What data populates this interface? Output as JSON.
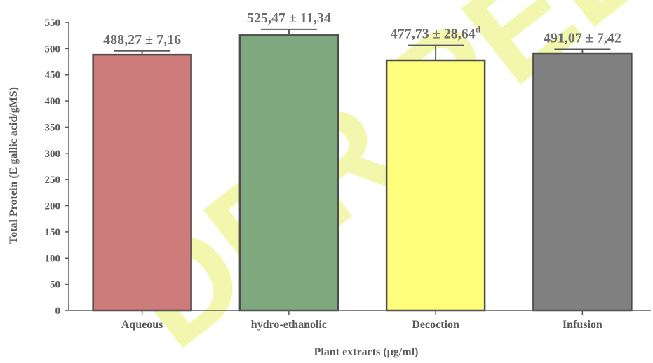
{
  "watermark": "DER PEER REVI",
  "colors": {
    "axis": "#595959",
    "bar_outline": "#4d4d4d",
    "error_bar": "#595959",
    "watermark": "#d9e600"
  },
  "chart_data": {
    "type": "bar",
    "xlabel": "Plant extracts (µg/ml)",
    "ylabel": "Total Protein (E gallic acid/gMS)",
    "ylim": [
      0,
      550
    ],
    "yticks": [
      0,
      50,
      100,
      150,
      200,
      250,
      300,
      350,
      400,
      450,
      500,
      550
    ],
    "grid": false,
    "categories": [
      "Aqueous",
      "hydro-ethanolic",
      "Decoction",
      "Infusion"
    ],
    "values": [
      488.27,
      525.47,
      477.73,
      491.07
    ],
    "errors": [
      7.16,
      11.34,
      28.64,
      7.42
    ],
    "bar_colors": [
      "#cd7b7b",
      "#7ea97e",
      "#ffff7b",
      "#808080"
    ],
    "data_labels": [
      {
        "text": "488,27 ± 7,16",
        "superscript": ""
      },
      {
        "text": "525,47 ± 11,34",
        "superscript": ""
      },
      {
        "text": "477,73 ± 28,64",
        "superscript": "d"
      },
      {
        "text": "491,07 ± 7,42",
        "superscript": ""
      }
    ]
  }
}
